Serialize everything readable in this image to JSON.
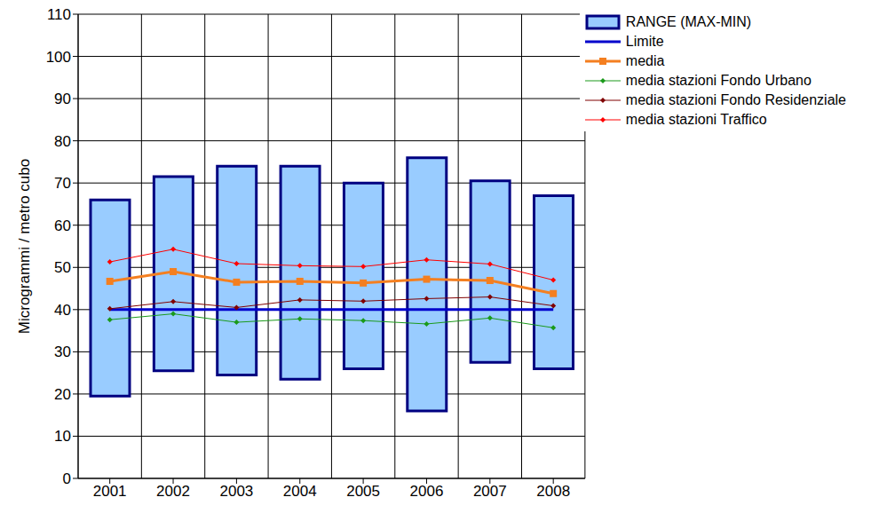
{
  "chart_data": {
    "type": "combo",
    "y_label": "Microgrammi / metro cubo",
    "categories": [
      "2001",
      "2002",
      "2003",
      "2004",
      "2005",
      "2006",
      "2007",
      "2008"
    ],
    "ylim": [
      0,
      110
    ],
    "yticks": [
      0,
      10,
      20,
      30,
      40,
      50,
      60,
      70,
      80,
      90,
      100,
      110
    ],
    "grid": true,
    "legend": "upper right",
    "series": [
      {
        "name": "RANGE (MAX-MIN)",
        "type": "range_bar",
        "color": "#99ccff",
        "values": [
          [
            19.5,
            66
          ],
          [
            25.5,
            71.5
          ],
          [
            24.5,
            74
          ],
          [
            23.5,
            74
          ],
          [
            26,
            70
          ],
          [
            16,
            76
          ],
          [
            27.5,
            70.5
          ],
          [
            26,
            67
          ]
        ]
      },
      {
        "name": "Limite",
        "type": "line",
        "color": "#0000cc",
        "marker": "none",
        "values": [
          40,
          40,
          40,
          40,
          40,
          40,
          40,
          40
        ]
      },
      {
        "name": "media",
        "type": "line",
        "color": "#f47f20",
        "marker": "square",
        "values": [
          46.7,
          49,
          46.5,
          46.7,
          46.3,
          47.2,
          46.9,
          43.8
        ]
      },
      {
        "name": "media stazioni Fondo Urbano",
        "type": "line",
        "color": "#1a9a1a",
        "marker": "diamond",
        "values": [
          37.6,
          39,
          37,
          37.8,
          37.4,
          36.6,
          38,
          35.7
        ]
      },
      {
        "name": "media stazioni Fondo Residenziale",
        "type": "line",
        "color": "#800000",
        "marker": "diamond",
        "values": [
          40.2,
          41.9,
          40.5,
          42.3,
          42,
          42.6,
          43,
          40.9
        ]
      },
      {
        "name": "media stazioni Traffico",
        "type": "line",
        "color": "#ff0000",
        "marker": "diamond",
        "values": [
          51.3,
          54.3,
          50.9,
          50.4,
          50.2,
          51.8,
          50.8,
          47
        ]
      }
    ]
  }
}
